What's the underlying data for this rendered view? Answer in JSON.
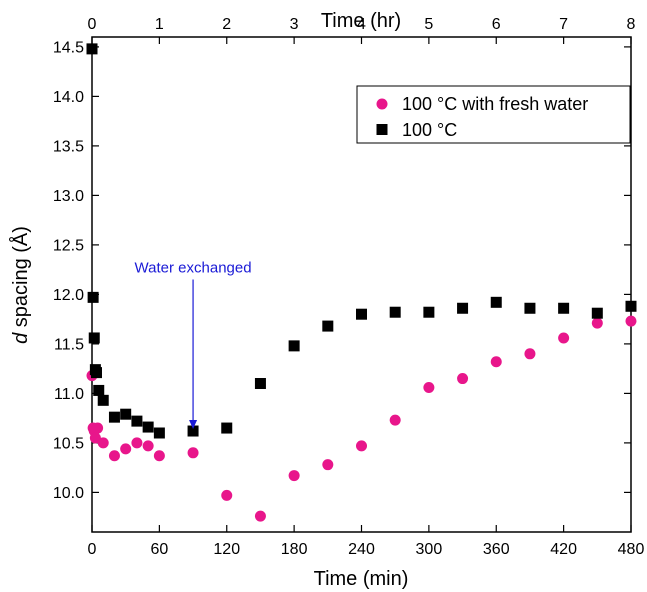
{
  "chart_data": {
    "type": "scatter",
    "xlabel": "Time (min)",
    "x2label": "Time (hr)",
    "ylabel_italic": "d",
    "ylabel_rest": " spacing (Å)",
    "xlim": [
      0,
      480
    ],
    "ylim": [
      9.6,
      14.6
    ],
    "x_ticks": [
      0,
      60,
      120,
      180,
      240,
      300,
      360,
      420,
      480
    ],
    "x2_ticks": [
      0,
      1,
      2,
      3,
      4,
      5,
      6,
      7,
      8
    ],
    "y_ticks": [
      10.0,
      10.5,
      11.0,
      11.5,
      12.0,
      12.5,
      13.0,
      13.5,
      14.0,
      14.5
    ],
    "legend_position": "top-right",
    "series": [
      {
        "name": "100 °C with fresh water",
        "marker": "circle",
        "color": "#e8168b",
        "points": [
          [
            0,
            11.18
          ],
          [
            1,
            10.65
          ],
          [
            2,
            10.62
          ],
          [
            3,
            10.55
          ],
          [
            5,
            10.65
          ],
          [
            10,
            10.5
          ],
          [
            20,
            10.37
          ],
          [
            30,
            10.44
          ],
          [
            40,
            10.5
          ],
          [
            50,
            10.47
          ],
          [
            60,
            10.37
          ],
          [
            90,
            10.4
          ],
          [
            120,
            9.97
          ],
          [
            150,
            9.76
          ],
          [
            180,
            10.17
          ],
          [
            210,
            10.28
          ],
          [
            240,
            10.47
          ],
          [
            270,
            10.73
          ],
          [
            300,
            11.06
          ],
          [
            330,
            11.15
          ],
          [
            360,
            11.32
          ],
          [
            390,
            11.4
          ],
          [
            420,
            11.56
          ],
          [
            450,
            11.71
          ],
          [
            480,
            11.73
          ]
        ]
      },
      {
        "name": "100 °C",
        "marker": "square",
        "color": "#000000",
        "points": [
          [
            0,
            14.48
          ],
          [
            1,
            11.97
          ],
          [
            2,
            11.56
          ],
          [
            3,
            11.24
          ],
          [
            4,
            11.21
          ],
          [
            6,
            11.03
          ],
          [
            10,
            10.93
          ],
          [
            20,
            10.76
          ],
          [
            30,
            10.79
          ],
          [
            40,
            10.72
          ],
          [
            50,
            10.66
          ],
          [
            60,
            10.6
          ],
          [
            90,
            10.62
          ],
          [
            120,
            10.65
          ],
          [
            150,
            11.1
          ],
          [
            180,
            11.48
          ],
          [
            210,
            11.68
          ],
          [
            240,
            11.8
          ],
          [
            270,
            11.82
          ],
          [
            300,
            11.82
          ],
          [
            330,
            11.86
          ],
          [
            360,
            11.92
          ],
          [
            390,
            11.86
          ],
          [
            420,
            11.86
          ],
          [
            450,
            11.81
          ],
          [
            480,
            11.88
          ]
        ]
      }
    ],
    "annotations": [
      {
        "text": "Water exchanged",
        "x": 90,
        "y_from": 12.15,
        "y_to": 10.62,
        "color": "#1a1ad6"
      }
    ]
  }
}
